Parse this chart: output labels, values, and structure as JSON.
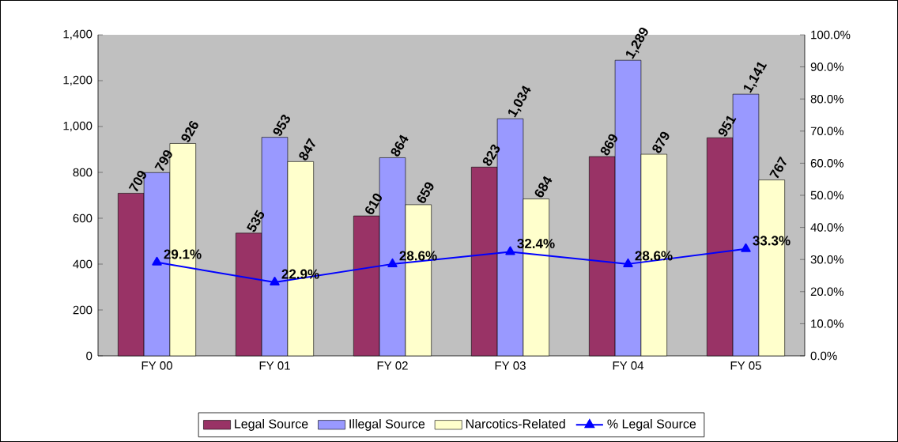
{
  "chart_data": {
    "type": "bar",
    "categories": [
      "FY 00",
      "FY 01",
      "FY 02",
      "FY 03",
      "FY 04",
      "FY 05"
    ],
    "series": [
      {
        "name": "Legal Source",
        "color": "#993366",
        "values": [
          709,
          535,
          610,
          823,
          869,
          951
        ],
        "value_labels": [
          "709",
          "535",
          "610",
          "823",
          "869",
          "951"
        ]
      },
      {
        "name": "Illegal Source",
        "color": "#9999ff",
        "values": [
          799,
          953,
          864,
          1034,
          1289,
          1141
        ],
        "value_labels": [
          "799",
          "953",
          "864",
          "1,034",
          "1,289",
          "1,141"
        ]
      },
      {
        "name": "Narcotics-Related",
        "color": "#ffffcc",
        "values": [
          926,
          847,
          659,
          684,
          879,
          767
        ],
        "value_labels": [
          "926",
          "847",
          "659",
          "684",
          "879",
          "767"
        ]
      },
      {
        "name": "% Legal Source",
        "type": "line",
        "axis": "y2",
        "color": "#0000ff",
        "marker": "triangle",
        "values": [
          29.1,
          22.9,
          28.6,
          32.4,
          28.6,
          33.3
        ],
        "value_labels": [
          "29.1%",
          "22.9%",
          "28.6%",
          "32.4%",
          "28.6%",
          "33.3%"
        ]
      }
    ],
    "ylim": [
      0,
      1400
    ],
    "yticks": [
      0,
      200,
      400,
      600,
      800,
      {
        "value": 1000,
        "label": "1,000"
      },
      {
        "value": 1200,
        "label": "1,200"
      },
      {
        "value": 1400,
        "label": "1,400"
      }
    ],
    "y2lim": [
      0,
      100
    ],
    "y2ticks": [
      {
        "value": 0,
        "label": "0.0%"
      },
      {
        "value": 10,
        "label": "10.0%"
      },
      {
        "value": 20,
        "label": "20.0%"
      },
      {
        "value": 30,
        "label": "30.0%"
      },
      {
        "value": 40,
        "label": "40.0%"
      },
      {
        "value": 50,
        "label": "50.0%"
      },
      {
        "value": 60,
        "label": "60.0%"
      },
      {
        "value": 70,
        "label": "70.0%"
      },
      {
        "value": 80,
        "label": "80.0%"
      },
      {
        "value": 90,
        "label": "90.0%"
      },
      {
        "value": 100,
        "label": "100.0%"
      }
    ],
    "legend": "bottom"
  }
}
